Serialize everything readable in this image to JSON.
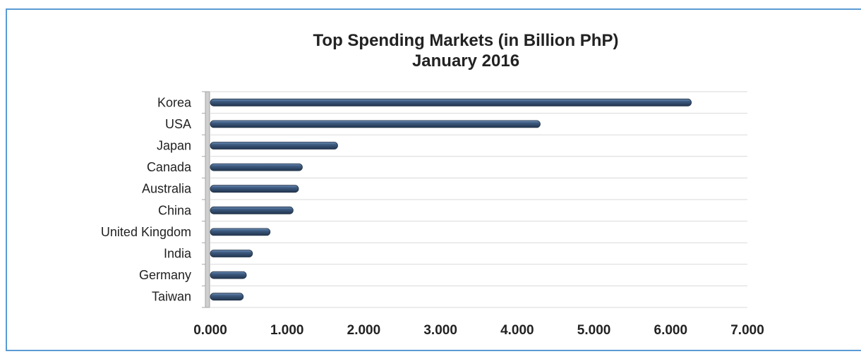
{
  "chart_data": {
    "type": "bar",
    "orientation": "horizontal",
    "title": "Top Spending Markets (in Billion PhP)",
    "subtitle": "January 2016",
    "categories": [
      "Korea",
      "USA",
      "Japan",
      "Canada",
      "Australia",
      "China",
      "United Kingdom",
      "India",
      "Germany",
      "Taiwan"
    ],
    "values": [
      6.27,
      4.3,
      1.66,
      1.2,
      1.15,
      1.08,
      0.78,
      0.55,
      0.47,
      0.43
    ],
    "xlim": [
      0,
      7
    ],
    "x_ticks": [
      "0.000",
      "1.000",
      "2.000",
      "3.000",
      "4.000",
      "5.000",
      "6.000",
      "7.000"
    ],
    "grid": true,
    "legend": "none",
    "colors": {
      "bar": "#2f4a6d",
      "bar_highlight": "#6f8fb5",
      "grid": "#d9d9d9",
      "axis": "#a6a6a6",
      "frame": "#5b9bd5"
    }
  }
}
